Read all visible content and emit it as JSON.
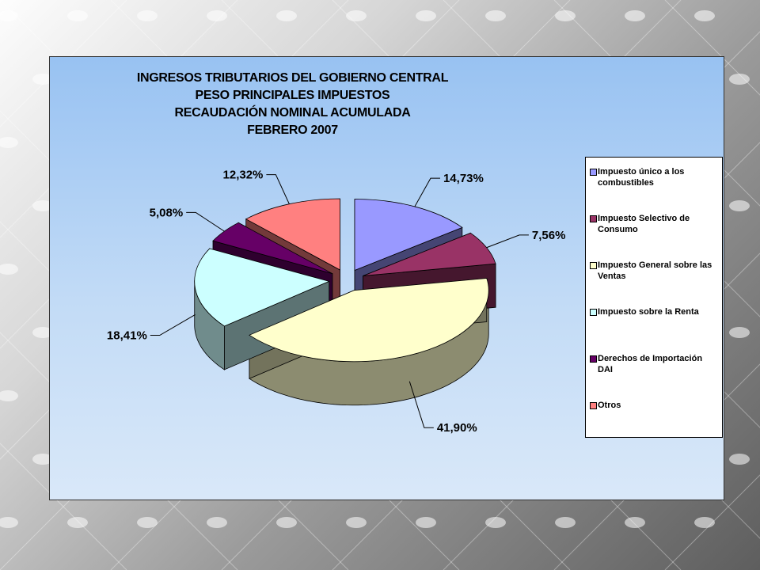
{
  "chart_data": {
    "type": "pie",
    "title_lines": [
      "INGRESOS TRIBUTARIOS DEL GOBIERNO CENTRAL",
      "PESO PRINCIPALES IMPUESTOS",
      "RECAUDACIÓN NOMINAL ACUMULADA",
      "FEBRERO 2007"
    ],
    "legend_placement": "right",
    "slices": [
      {
        "name": "Impuesto único a los combustibles",
        "value": 14.73,
        "label": "14,73%",
        "color": "#9999ff"
      },
      {
        "name": "Impuesto Selectivo de Consumo",
        "value": 7.56,
        "label": "7,56%",
        "color": "#993366"
      },
      {
        "name": "Impuesto General sobre las Ventas",
        "value": 41.9,
        "label": "41,90%",
        "color": "#ffffcc"
      },
      {
        "name": "Impuesto sobre la Renta",
        "value": 18.41,
        "label": "18,41%",
        "color": "#ccffff"
      },
      {
        "name": "Derechos de Importación DAI",
        "value": 5.08,
        "label": "5,08%",
        "color": "#660066"
      },
      {
        "name": "Otros",
        "value": 12.32,
        "label": "12,32%",
        "color": "#ff8080"
      }
    ]
  }
}
